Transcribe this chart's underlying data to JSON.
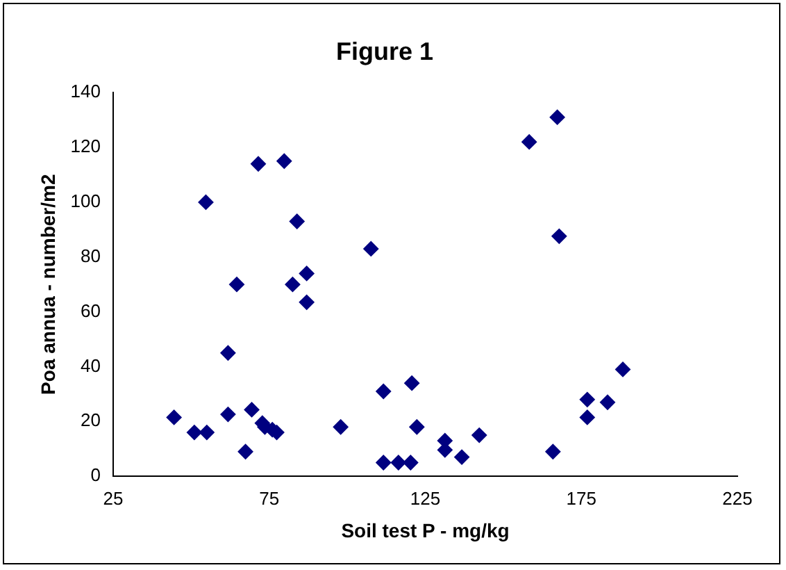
{
  "chart_data": {
    "type": "scatter",
    "title": "Figure 1",
    "xlabel": "Soil test P - mg/kg",
    "ylabel": "Poa annua - number/m2",
    "x": [
      71.5,
      79.8,
      54.7,
      83.9,
      107.6,
      64.6,
      82.5,
      87,
      87,
      61.8,
      111.6,
      44.5,
      51,
      55,
      61.8,
      69.4,
      72.8,
      73.6,
      76,
      77.4,
      67.4,
      97.9,
      111.6,
      120.7,
      122.3,
      116.4,
      120.3,
      131.3,
      131.3,
      136.7,
      142.3,
      158.3,
      167.3,
      167.9,
      165.9,
      176.9,
      176.9,
      183.4,
      188.3
    ],
    "values": [
      114,
      115,
      100,
      93,
      83,
      70,
      70,
      74,
      63.5,
      45,
      31,
      21.5,
      16,
      16,
      22.6,
      24.3,
      19.4,
      18,
      17,
      16,
      9,
      18,
      5,
      34,
      18,
      5,
      5,
      13,
      9.6,
      7,
      15,
      122,
      131,
      87.6,
      9,
      28,
      21.5,
      27,
      39
    ],
    "color": "#000080",
    "marker": "diamond",
    "grid": false,
    "legend": false,
    "xlim": [
      25,
      225
    ],
    "xticks": [
      25,
      75,
      125,
      175,
      225
    ],
    "ylim": [
      0,
      140
    ],
    "yticks": [
      0,
      20,
      40,
      60,
      80,
      100,
      120,
      140
    ]
  }
}
